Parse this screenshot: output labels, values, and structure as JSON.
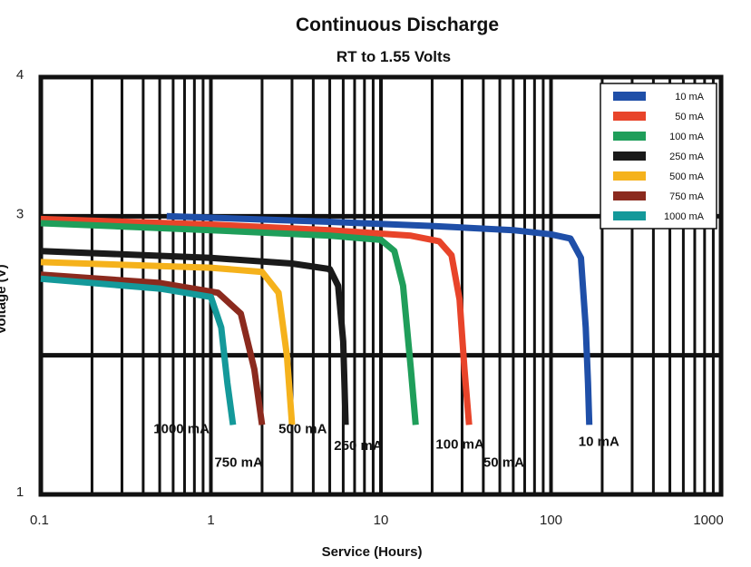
{
  "chart_data": {
    "type": "line",
    "title": "Continuous Discharge",
    "subtitle": "RT to 1.55 Volts",
    "xlabel": "Service (Hours)",
    "ylabel": "Voltage (V)",
    "xscale": "log",
    "xlim": [
      0.1,
      1000
    ],
    "ylim": [
      1,
      4
    ],
    "x_ticks": [
      "0.1",
      "1",
      "10",
      "100",
      "1000"
    ],
    "y_ticks": [
      "1",
      "3",
      "4"
    ],
    "grid": true,
    "legend": "top-right",
    "series": [
      {
        "name": "10 mA",
        "color": "#1f4fa8",
        "x": [
          0.55,
          5,
          20,
          60,
          100,
          130,
          150,
          160,
          165,
          168
        ],
        "y": [
          3.0,
          2.96,
          2.93,
          2.9,
          2.87,
          2.84,
          2.7,
          2.2,
          1.8,
          1.5
        ]
      },
      {
        "name": "50 mA",
        "color": "#e8442a",
        "x": [
          0.1,
          1,
          5,
          15,
          22,
          26,
          29,
          31,
          33
        ],
        "y": [
          2.98,
          2.94,
          2.9,
          2.86,
          2.82,
          2.72,
          2.4,
          1.9,
          1.5
        ]
      },
      {
        "name": "100 mA",
        "color": "#1f9e5a",
        "x": [
          0.1,
          1,
          5,
          10,
          12,
          13.5,
          15,
          16
        ],
        "y": [
          2.95,
          2.9,
          2.86,
          2.83,
          2.75,
          2.5,
          1.9,
          1.5
        ]
      },
      {
        "name": "250 mA",
        "color": "#1a1a1a",
        "x": [
          0.1,
          1,
          3,
          5,
          5.6,
          6,
          6.2
        ],
        "y": [
          2.75,
          2.7,
          2.66,
          2.62,
          2.5,
          2.1,
          1.5
        ]
      },
      {
        "name": "500 mA",
        "color": "#f5b21c",
        "x": [
          0.1,
          1,
          2,
          2.5,
          2.8,
          3
        ],
        "y": [
          2.67,
          2.63,
          2.6,
          2.45,
          2.0,
          1.5
        ]
      },
      {
        "name": "750 mA",
        "color": "#8b2a1e",
        "x": [
          0.1,
          0.5,
          1.1,
          1.5,
          1.8,
          2
        ],
        "y": [
          2.58,
          2.52,
          2.45,
          2.3,
          1.9,
          1.5
        ]
      },
      {
        "name": "1000 mA",
        "color": "#14999a",
        "x": [
          0.1,
          0.5,
          1.0,
          1.15,
          1.25,
          1.35
        ],
        "y": [
          2.55,
          2.48,
          2.42,
          2.2,
          1.8,
          1.5
        ]
      }
    ],
    "annotations": [
      {
        "text": "1000 mA",
        "x": 0.46,
        "y": 1.44
      },
      {
        "text": "750 mA",
        "x": 1.05,
        "y": 1.2
      },
      {
        "text": "500 mA",
        "x": 2.5,
        "y": 1.44
      },
      {
        "text": "250 mA",
        "x": 5.3,
        "y": 1.32
      },
      {
        "text": "100 mA",
        "x": 21,
        "y": 1.33
      },
      {
        "text": "50 mA",
        "x": 40,
        "y": 1.2
      },
      {
        "text": "10 mA",
        "x": 145,
        "y": 1.35
      }
    ]
  }
}
